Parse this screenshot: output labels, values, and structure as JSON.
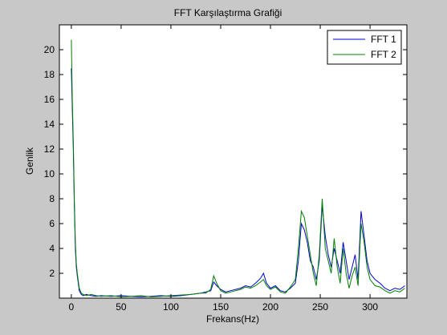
{
  "chart_data": {
    "type": "line",
    "title": "FFT Karşılaştırma Grafiği",
    "xlabel": "Frekans(Hz)",
    "ylabel": "Genlik",
    "xlim": [
      -12,
      337
    ],
    "ylim": [
      0,
      22
    ],
    "xticks": [
      0,
      50,
      100,
      150,
      200,
      250,
      300
    ],
    "yticks": [
      2,
      4,
      6,
      8,
      10,
      12,
      14,
      16,
      18,
      20
    ],
    "legend_position": "top-right",
    "grid": false,
    "series": [
      {
        "name": "FFT 1",
        "color": "#0000cc",
        "x": [
          0,
          1,
          2,
          3,
          4,
          5,
          6,
          8,
          10,
          12,
          15,
          20,
          25,
          30,
          40,
          50,
          60,
          70,
          80,
          90,
          100,
          110,
          120,
          130,
          135,
          140,
          143,
          146,
          150,
          155,
          160,
          165,
          170,
          175,
          180,
          185,
          190,
          193,
          196,
          200,
          205,
          210,
          215,
          220,
          225,
          228,
          231,
          234,
          237,
          240,
          243,
          246,
          249,
          252,
          255,
          258,
          261,
          264,
          267,
          270,
          273,
          276,
          279,
          282,
          285,
          288,
          291,
          294,
          297,
          300,
          305,
          310,
          315,
          320,
          325,
          330,
          335
        ],
        "y": [
          18.5,
          15.2,
          11.8,
          7.5,
          4.0,
          2.5,
          1.8,
          0.6,
          0.3,
          0.2,
          0.3,
          0.2,
          0.15,
          0.2,
          0.15,
          0.2,
          0.15,
          0.1,
          0.15,
          0.2,
          0.15,
          0.2,
          0.3,
          0.4,
          0.5,
          0.6,
          1.3,
          1.0,
          0.7,
          0.5,
          0.6,
          0.7,
          0.8,
          1.0,
          0.9,
          1.2,
          1.6,
          2.0,
          1.2,
          0.8,
          1.0,
          0.6,
          0.5,
          0.8,
          1.2,
          3.0,
          6.0,
          5.5,
          4.5,
          3.0,
          2.5,
          1.5,
          3.0,
          7.5,
          5.0,
          3.5,
          2.5,
          4.0,
          3.0,
          2.0,
          4.5,
          3.0,
          1.5,
          2.5,
          3.5,
          1.5,
          7.0,
          5.0,
          3.0,
          2.0,
          1.5,
          1.2,
          0.8,
          0.6,
          0.8,
          0.7,
          1.0
        ]
      },
      {
        "name": "FFT 2",
        "color": "#008000",
        "x": [
          0,
          1,
          2,
          3,
          4,
          5,
          6,
          8,
          10,
          12,
          15,
          20,
          25,
          30,
          40,
          50,
          60,
          70,
          80,
          90,
          100,
          110,
          120,
          130,
          135,
          140,
          143,
          146,
          150,
          155,
          160,
          165,
          170,
          175,
          180,
          185,
          190,
          193,
          196,
          200,
          205,
          210,
          215,
          220,
          225,
          228,
          231,
          234,
          237,
          240,
          243,
          246,
          249,
          252,
          255,
          258,
          261,
          264,
          267,
          270,
          273,
          276,
          279,
          282,
          285,
          288,
          291,
          294,
          297,
          300,
          305,
          310,
          315,
          320,
          325,
          330,
          335
        ],
        "y": [
          20.8,
          16.0,
          12.5,
          8.0,
          4.5,
          2.8,
          2.0,
          0.8,
          0.4,
          0.3,
          0.2,
          0.3,
          0.2,
          0.15,
          0.2,
          0.1,
          0.15,
          0.2,
          0.1,
          0.15,
          0.2,
          0.25,
          0.3,
          0.4,
          0.4,
          0.7,
          1.8,
          1.2,
          0.6,
          0.4,
          0.5,
          0.6,
          0.7,
          0.9,
          0.8,
          1.0,
          1.3,
          1.5,
          1.0,
          0.7,
          0.9,
          0.5,
          0.4,
          0.9,
          1.5,
          4.0,
          7.0,
          6.5,
          5.0,
          3.5,
          2.0,
          1.0,
          3.5,
          8.0,
          4.0,
          3.0,
          2.0,
          4.8,
          2.5,
          1.2,
          4.0,
          2.0,
          0.8,
          1.8,
          2.5,
          1.0,
          6.0,
          4.5,
          2.5,
          1.5,
          1.0,
          0.9,
          0.6,
          0.4,
          0.6,
          0.5,
          0.8
        ]
      }
    ]
  }
}
